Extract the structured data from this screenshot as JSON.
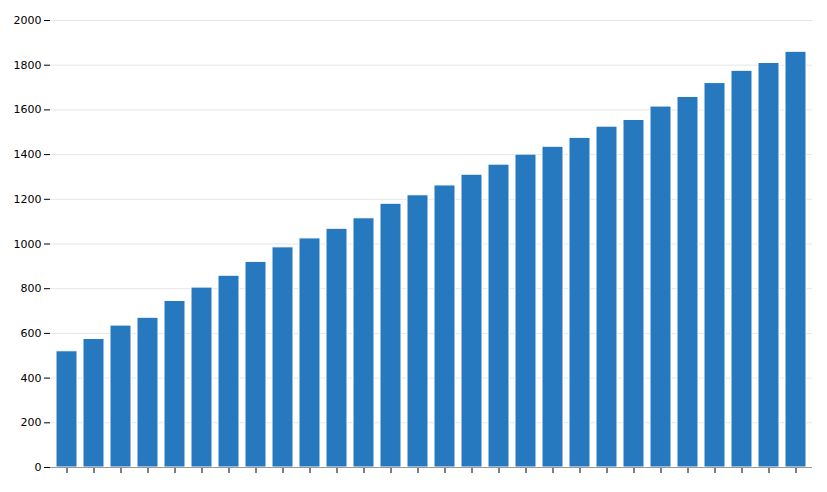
{
  "chart_data": {
    "type": "bar",
    "categories": [
      null,
      null,
      null,
      null,
      null,
      null,
      null,
      null,
      null,
      null,
      null,
      null,
      null,
      null,
      null,
      null,
      null,
      null,
      null,
      null,
      null,
      null,
      null,
      null,
      null,
      null,
      null,
      null
    ],
    "values": [
      520,
      575,
      635,
      670,
      745,
      805,
      858,
      920,
      985,
      1025,
      1068,
      1115,
      1180,
      1218,
      1262,
      1310,
      1355,
      1400,
      1435,
      1475,
      1525,
      1555,
      1615,
      1658,
      1720,
      1775,
      1810,
      1860
    ],
    "color": "#2678BF",
    "ylim": [
      0,
      2000
    ],
    "yticks": [
      0,
      200,
      400,
      600,
      800,
      1000,
      1200,
      1400,
      1600,
      1800,
      2000
    ],
    "grid": true,
    "tick_labels": "y"
  }
}
